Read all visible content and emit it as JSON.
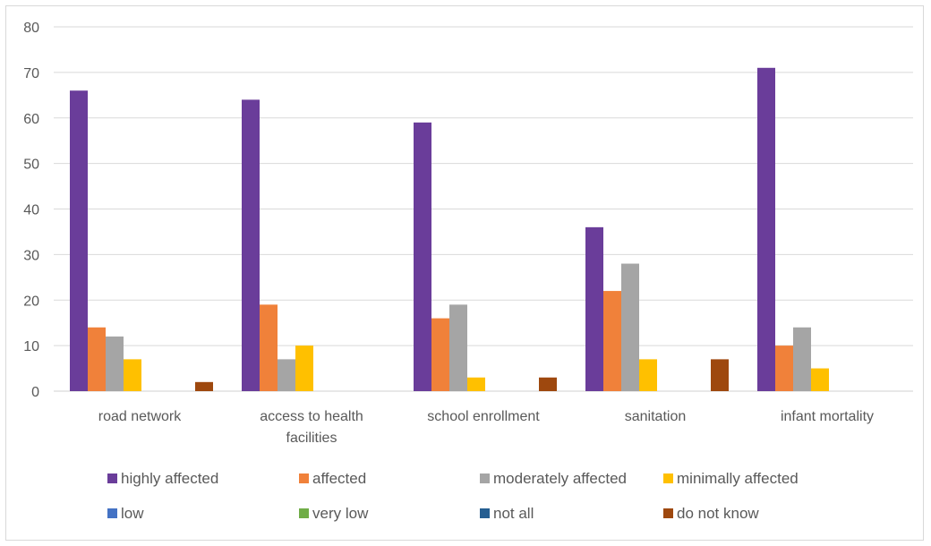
{
  "chart_data": {
    "type": "bar",
    "categories": [
      [
        "road network"
      ],
      [
        "access to health",
        "facilities"
      ],
      [
        "school enrollment"
      ],
      [
        "sanitation"
      ],
      [
        "infant mortality"
      ]
    ],
    "series": [
      {
        "name": "highly affected",
        "color": "#6a3d9a",
        "values": [
          66,
          64,
          59,
          36,
          71
        ]
      },
      {
        "name": "affected",
        "color": "#f0813a",
        "values": [
          14,
          19,
          16,
          22,
          10
        ]
      },
      {
        "name": "moderately affected",
        "color": "#a5a5a5",
        "values": [
          12,
          7,
          19,
          28,
          14
        ]
      },
      {
        "name": "minimally affected",
        "color": "#ffc000",
        "values": [
          7,
          10,
          3,
          7,
          5
        ]
      },
      {
        "name": "low",
        "color": "#4472c4",
        "values": [
          0,
          0,
          0,
          0,
          0
        ]
      },
      {
        "name": "very low",
        "color": "#70ad47",
        "values": [
          0,
          0,
          0,
          0,
          0
        ]
      },
      {
        "name": "not all",
        "color": "#255e91",
        "values": [
          0,
          0,
          0,
          0,
          0
        ]
      },
      {
        "name": "do not know",
        "color": "#9e480e",
        "values": [
          2,
          0,
          3,
          7,
          0
        ]
      }
    ],
    "ylim": [
      0,
      80
    ],
    "yticks": [
      0,
      10,
      20,
      30,
      40,
      50,
      60,
      70,
      80
    ],
    "grid": true,
    "legend_position": "bottom",
    "title": "",
    "xlabel": "",
    "ylabel": ""
  }
}
